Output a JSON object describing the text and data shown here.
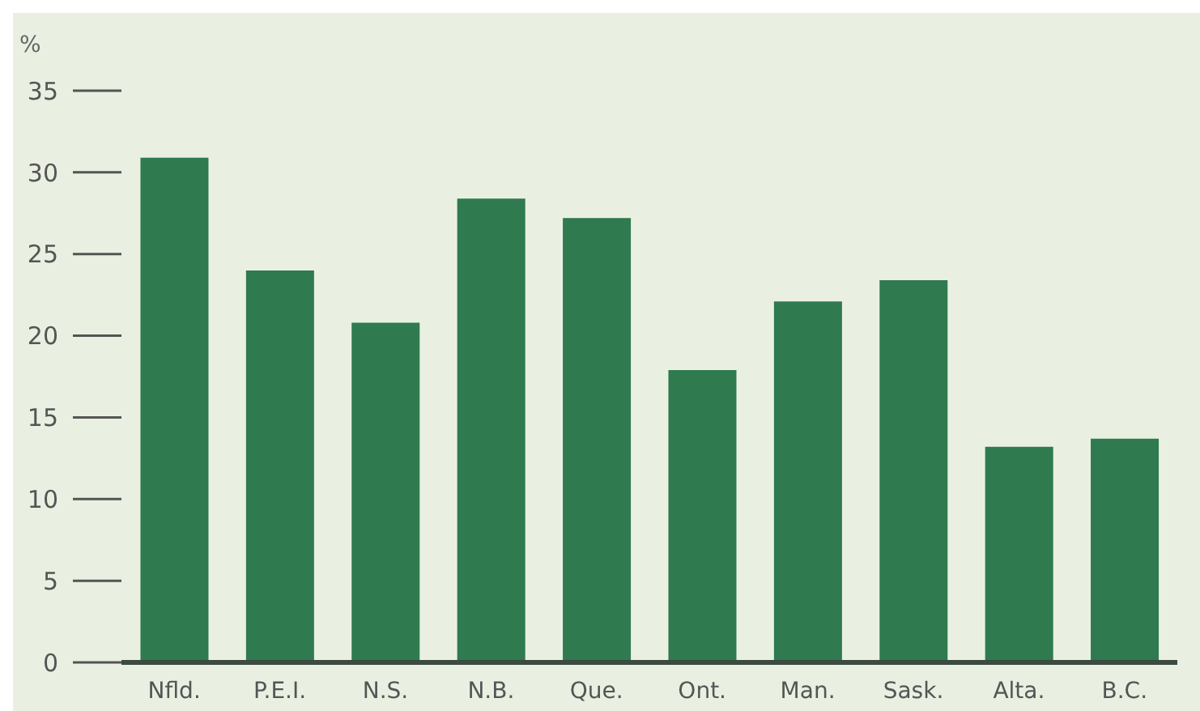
{
  "chart_data": {
    "type": "bar",
    "ylabel": "%",
    "categories": [
      "Nfld.",
      "P.E.I.",
      "N.S.",
      "N.B.",
      "Que.",
      "Ont.",
      "Man.",
      "Sask.",
      "Alta.",
      "B.C."
    ],
    "values": [
      30.9,
      24.0,
      20.8,
      28.4,
      27.2,
      17.9,
      22.1,
      23.4,
      13.2,
      13.7
    ],
    "color": "#2f7a4f",
    "ylim": [
      0,
      35
    ],
    "yticks": [
      0,
      5,
      10,
      15,
      20,
      25,
      30,
      35
    ]
  }
}
